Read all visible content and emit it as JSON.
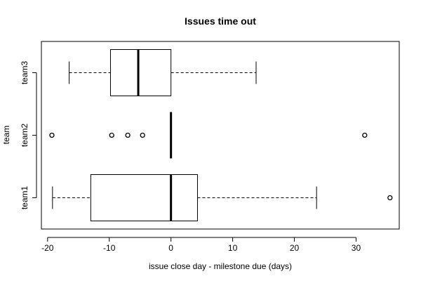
{
  "chart_data": {
    "type": "boxplot",
    "orientation": "horizontal",
    "title": "Issues time out",
    "xlabel": "issue close day - milestone due (days)",
    "ylabel": "team",
    "xlim": [
      -21,
      37
    ],
    "x_ticks": [
      -20,
      -10,
      0,
      10,
      20,
      30
    ],
    "x_tick_labels": [
      "-20",
      "-10",
      "0",
      "10",
      "20",
      "30"
    ],
    "categories": [
      "team1",
      "team2",
      "team3"
    ],
    "boxes": [
      {
        "name": "team1",
        "whisker_low": -19.2,
        "q1": -13.0,
        "median": 0.0,
        "q3": 4.3,
        "whisker_high": 23.6,
        "outliers": [
          35.5
        ]
      },
      {
        "name": "team2",
        "whisker_low": 0.0,
        "q1": 0.0,
        "median": 0.0,
        "q3": 0.0,
        "whisker_high": 0.0,
        "outliers": [
          -19.3,
          -9.6,
          -7.0,
          -4.6,
          31.4
        ]
      },
      {
        "name": "team3",
        "whisker_low": -16.5,
        "q1": -9.8,
        "median": -5.3,
        "q3": 0.0,
        "whisker_high": 13.8,
        "outliers": []
      }
    ],
    "grid": false,
    "legend": "none"
  }
}
